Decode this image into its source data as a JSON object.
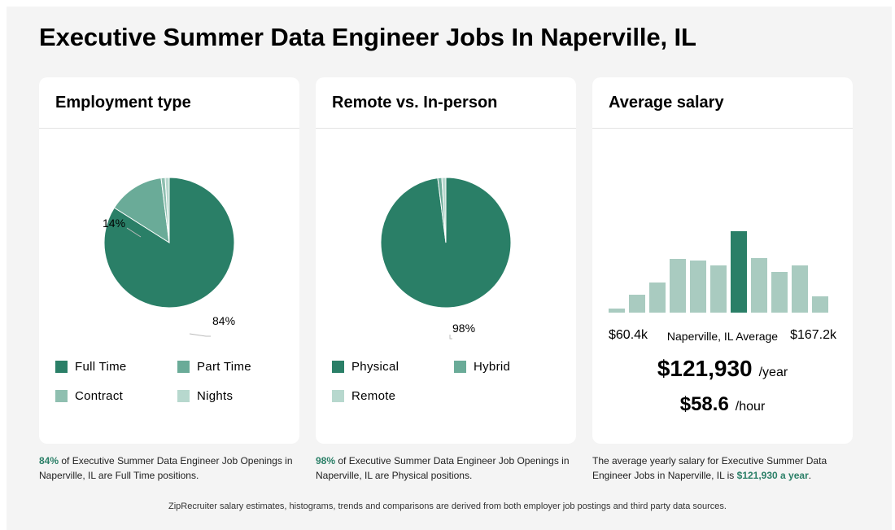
{
  "page": {
    "title": "Executive Summer Data Engineer Jobs In Naperville, IL",
    "footer": "ZipRecruiter salary estimates, histograms, trends and comparisons are derived from both employer job postings and third party data sources."
  },
  "colors": {
    "dark_green": "#2a7f67",
    "mid_green": "#6aab98",
    "light_green": "#8fbfb0",
    "pale_green": "#b7d8ce",
    "bar_light": "#a9cbc0",
    "bar_highlight": "#2a7f67"
  },
  "chart_data": [
    {
      "type": "pie",
      "title": "Employment type",
      "categories": [
        "Full Time",
        "Part Time",
        "Contract",
        "Nights"
      ],
      "values": [
        84,
        14,
        1,
        1
      ],
      "labels_shown": [
        "84%",
        "14%"
      ],
      "colors": [
        "#2a7f67",
        "#6aab98",
        "#8fbfb0",
        "#b7d8ce"
      ]
    },
    {
      "type": "pie",
      "title": "Remote vs. In-person",
      "categories": [
        "Physical",
        "Hybrid",
        "Remote"
      ],
      "values": [
        98,
        1,
        1
      ],
      "labels_shown": [
        "98%"
      ],
      "colors": [
        "#2a7f67",
        "#6aab98",
        "#b7d8ce"
      ]
    },
    {
      "type": "bar",
      "title": "Average salary",
      "values": [
        5,
        22,
        37,
        66,
        64,
        58,
        100,
        67,
        50,
        58,
        20
      ],
      "highlight_index": 6,
      "xlabel_min": "$60.4k",
      "xlabel_mid": "Naperville, IL Average",
      "xlabel_max": "$167.2k"
    }
  ],
  "cards": {
    "employment": {
      "title": "Employment type",
      "label_main": "84%",
      "label_second": "14%",
      "caption_highlight": "84%",
      "caption_text": " of Executive Summer Data Engineer Job Openings in Naperville, IL are Full Time positions."
    },
    "remote": {
      "title": "Remote vs. In-person",
      "label_main": "98%",
      "caption_highlight": "98%",
      "caption_text": " of Executive Summer Data Engineer Job Openings in Naperville, IL are Physical positions."
    },
    "salary": {
      "title": "Average salary",
      "yearly_amount": "$121,930",
      "yearly_unit": "/year",
      "hourly_amount": "$58.6",
      "hourly_unit": "/hour",
      "caption_text": "The average yearly salary for Executive Summer Data Engineer Jobs in Naperville, IL is ",
      "caption_highlight": "$121,930 a year",
      "caption_end": "."
    }
  }
}
